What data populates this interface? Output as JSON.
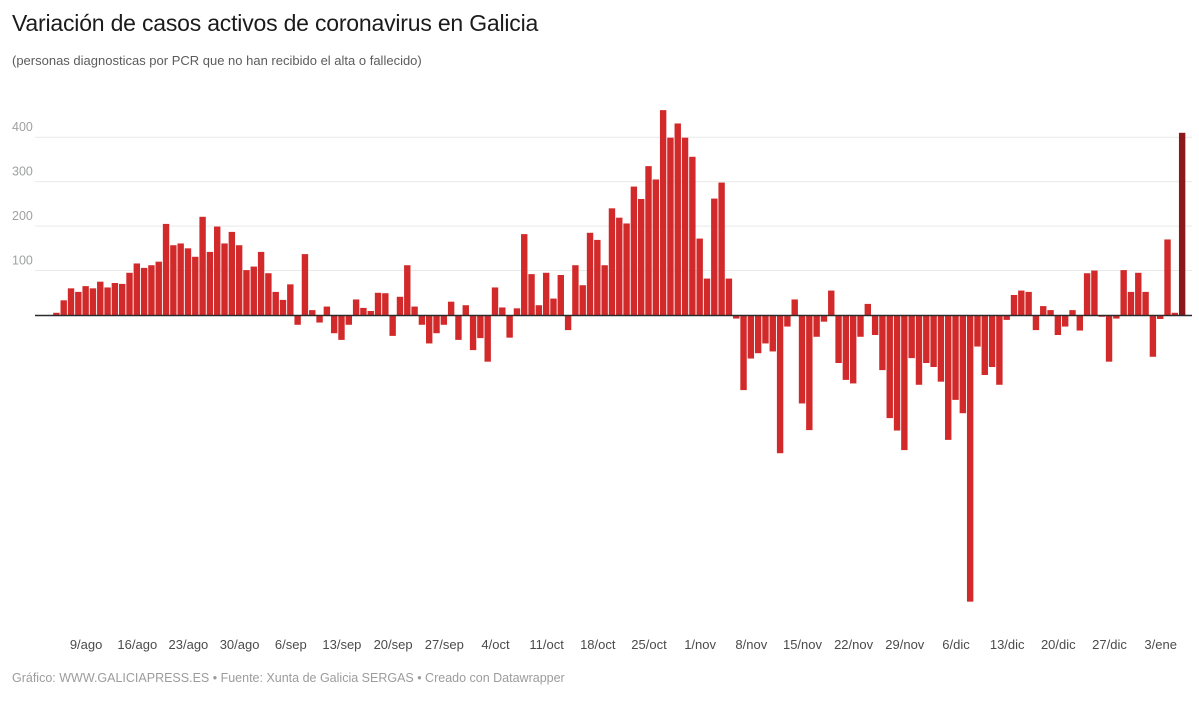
{
  "header": {
    "title": "Variación de casos activos de coronavirus en Galicia",
    "subtitle": "(personas diagnosticas por PCR que no han recibido el alta o fallecido)"
  },
  "footer": {
    "credit": "Gráfico: WWW.GALICIAPRESS.ES • Fuente: Xunta de Galicia SERGAS • Creado con Datawrapper"
  },
  "chart_data": {
    "type": "bar",
    "title": "Variación de casos activos de coronavirus en Galicia",
    "subtitle": "(personas diagnosticas por PCR que no han recibido el alta o fallecido)",
    "xlabel": "",
    "ylabel": "",
    "ylim": [
      -700,
      480
    ],
    "grid": "horizontal",
    "legend": "none",
    "bar_color": "#d22a2a",
    "last_bar_color": "#8b1919",
    "grid_color": "#e9e9e9",
    "baseline_color": "#2b2b2b",
    "ytick_values": [
      400,
      300,
      200,
      100
    ],
    "ytick_labels": [
      "400",
      "300",
      "200",
      "100"
    ],
    "x_tick_labels": [
      "9/ago",
      "16/ago",
      "23/ago",
      "30/ago",
      "6/sep",
      "13/sep",
      "20/sep",
      "27/sep",
      "4/oct",
      "11/oct",
      "18/oct",
      "25/oct",
      "1/nov",
      "8/nov",
      "15/nov",
      "22/nov",
      "29/nov",
      "6/dic",
      "13/dic",
      "20/dic",
      "27/dic",
      "3/ene"
    ],
    "x_tick_bar_indices": [
      4,
      11,
      18,
      25,
      32,
      39,
      46,
      53,
      60,
      67,
      74,
      81,
      88,
      95,
      102,
      109,
      116,
      123,
      130,
      137,
      144,
      151
    ],
    "x_period": "daily bars from 5/ago to 6/ene",
    "values": [
      5,
      33,
      60,
      52,
      65,
      60,
      75,
      62,
      72,
      70,
      95,
      116,
      106,
      112,
      120,
      205,
      157,
      161,
      150,
      131,
      221,
      142,
      199,
      161,
      187,
      157,
      101,
      109,
      142,
      94,
      52,
      34,
      69,
      -22,
      137,
      11,
      -17,
      19,
      -41,
      -56,
      -22,
      35,
      16,
      9,
      50,
      49,
      -47,
      41,
      112,
      19,
      -22,
      -64,
      -41,
      -22,
      30,
      -56,
      22,
      -79,
      -52,
      -105,
      62,
      17,
      -51,
      15,
      182,
      92,
      22,
      95,
      37,
      90,
      -34,
      112,
      67,
      185,
      169,
      112,
      240,
      219,
      206,
      289,
      261,
      335,
      305,
      461,
      399,
      431,
      399,
      356,
      172,
      82,
      262,
      298,
      82,
      -8,
      -169,
      -98,
      -86,
      -64,
      -82,
      -311,
      -26,
      35,
      -199,
      -259,
      -49,
      -15,
      55,
      -108,
      -146,
      -154,
      -49,
      25,
      -45,
      -124,
      -232,
      -260,
      -304,
      -97,
      -157,
      -108,
      -117,
      -150,
      -281,
      -191,
      -221,
      -645,
      -71,
      -135,
      -117,
      -157,
      -11,
      45,
      55,
      52,
      -34,
      20,
      11,
      -45,
      -26,
      11,
      -35,
      94,
      100,
      -4,
      -105,
      -8,
      101,
      52,
      95,
      52,
      -94,
      -9,
      170,
      5,
      410
    ]
  }
}
